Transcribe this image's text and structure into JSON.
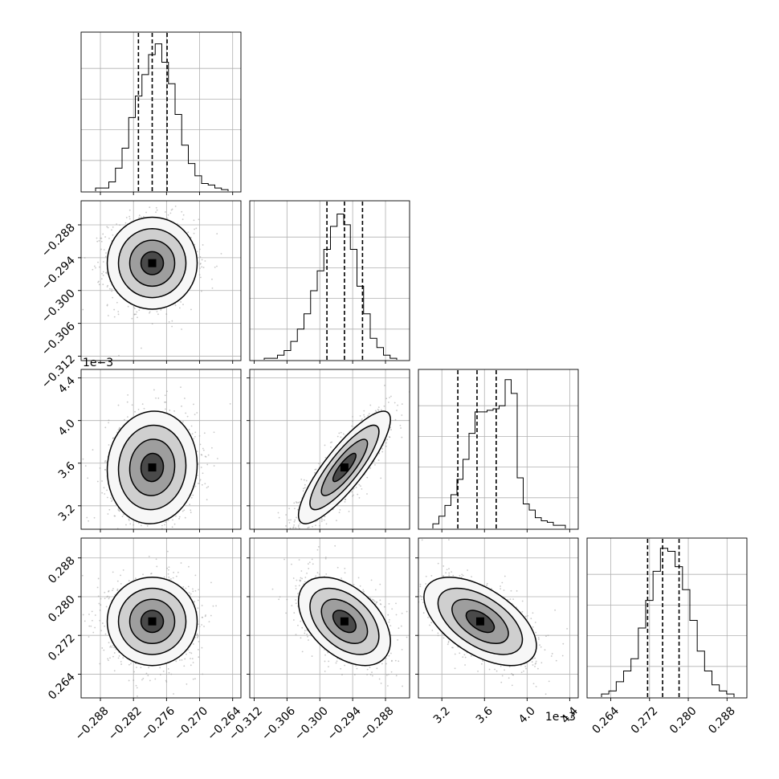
{
  "chart_data": {
    "type": "corner",
    "grid": true,
    "parameters": [
      {
        "lim": [
          -0.2915,
          -0.2625
        ],
        "ticks": [
          -0.288,
          -0.282,
          -0.276,
          -0.27,
          -0.264
        ],
        "tick_labels": [
          "−0.288",
          "−0.282",
          "−0.276",
          "−0.270",
          "−0.264"
        ],
        "offset_label": "",
        "quantiles": [
          -0.2811,
          -0.2786,
          -0.2759
        ],
        "peak": -0.2787,
        "hist_heights": [
          0.02,
          0.02,
          0.06,
          0.15,
          0.28,
          0.48,
          0.62,
          0.76,
          0.89,
          0.96,
          0.84,
          0.7,
          0.5,
          0.3,
          0.18,
          0.1,
          0.05,
          0.04,
          0.02,
          0.01
        ]
      },
      {
        "lim": [
          -0.3128,
          -0.2836
        ],
        "ticks": [
          -0.312,
          -0.306,
          -0.3,
          -0.294,
          -0.288
        ],
        "tick_labels": [
          "−0.312",
          "−0.306",
          "−0.300",
          "−0.294",
          "−0.288"
        ],
        "offset_label": "",
        "quantiles": [
          -0.2987,
          -0.2955,
          -0.2922
        ],
        "peak": -0.2955,
        "hist_heights": [
          0.01,
          0.01,
          0.03,
          0.06,
          0.12,
          0.2,
          0.3,
          0.45,
          0.58,
          0.72,
          0.87,
          0.95,
          0.88,
          0.72,
          0.48,
          0.3,
          0.14,
          0.08,
          0.03,
          0.01
        ]
      },
      {
        "lim": [
          2.98,
          4.48
        ],
        "ticks": [
          3.2,
          3.6,
          4.0,
          4.4
        ],
        "tick_labels": [
          "3.2",
          "3.6",
          "4.0",
          "4.4"
        ],
        "offset_label": "1e−3",
        "quantiles": [
          3.35,
          3.53,
          3.71
        ],
        "peak": 3.58,
        "hist_heights": [
          0.03,
          0.08,
          0.15,
          0.22,
          0.32,
          0.45,
          0.62,
          0.76,
          0.76,
          0.77,
          0.78,
          0.8,
          0.97,
          0.88,
          0.33,
          0.16,
          0.12,
          0.07,
          0.05,
          0.04,
          0.02,
          0.02
        ]
      },
      {
        "lim": [
          0.2591,
          0.2921
        ],
        "ticks": [
          0.264,
          0.272,
          0.28,
          0.288
        ],
        "tick_labels": [
          "0.264",
          "0.272",
          "0.280",
          "0.288"
        ],
        "offset_label": "",
        "quantiles": [
          0.2716,
          0.2747,
          0.2781
        ],
        "peak": 0.2748,
        "hist_heights": [
          0.02,
          0.04,
          0.1,
          0.17,
          0.25,
          0.45,
          0.63,
          0.82,
          0.97,
          0.95,
          0.85,
          0.7,
          0.5,
          0.3,
          0.17,
          0.08,
          0.04,
          0.02
        ]
      }
    ],
    "pairs": [
      {
        "row": 1,
        "col": 0,
        "center": [
          -0.2786,
          -0.295
        ],
        "sigma": [
          0.0034,
          0.0035
        ],
        "corr": 0.0
      },
      {
        "row": 2,
        "col": 0,
        "center": [
          -0.2786,
          3.56
        ],
        "sigma": [
          0.0034,
          0.22
        ],
        "corr": 0.05
      },
      {
        "row": 2,
        "col": 1,
        "center": [
          -0.2955,
          3.56
        ],
        "sigma": [
          0.0035,
          0.22
        ],
        "corr": 0.85
      },
      {
        "row": 3,
        "col": 0,
        "center": [
          -0.2786,
          0.2749
        ],
        "sigma": [
          0.0034,
          0.0038
        ],
        "corr": 0.0
      },
      {
        "row": 3,
        "col": 1,
        "center": [
          -0.2955,
          0.2749
        ],
        "sigma": [
          0.0035,
          0.0038
        ],
        "corr": -0.45
      },
      {
        "row": 3,
        "col": 2,
        "center": [
          3.56,
          0.2749
        ],
        "sigma": [
          0.22,
          0.0038
        ],
        "corr": -0.55
      }
    ],
    "contour_levels_sigma": [
      0.5,
      1.0,
      1.5,
      2.0
    ]
  }
}
